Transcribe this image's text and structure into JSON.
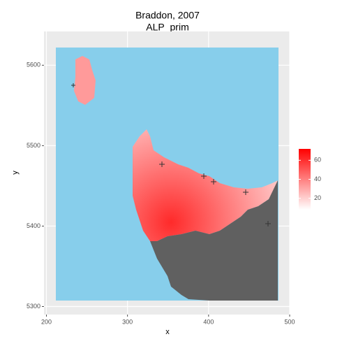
{
  "chart_data": {
    "type": "raster",
    "title": "Braddon, 2007",
    "subtitle": "ALP_prim",
    "x_label": "x",
    "y_label": "y",
    "xlim": [
      197,
      500
    ],
    "xticks": [
      200,
      300,
      400,
      500
    ],
    "ylim": [
      5290,
      5642
    ],
    "yticks": [
      5300,
      5400,
      5500,
      5600
    ],
    "colorbar": {
      "lim": [
        8,
        72
      ],
      "ticks": [
        20,
        40,
        60
      ],
      "low_color": "#ffffff",
      "high_color": "#ff0000"
    },
    "grid": true
  }
}
